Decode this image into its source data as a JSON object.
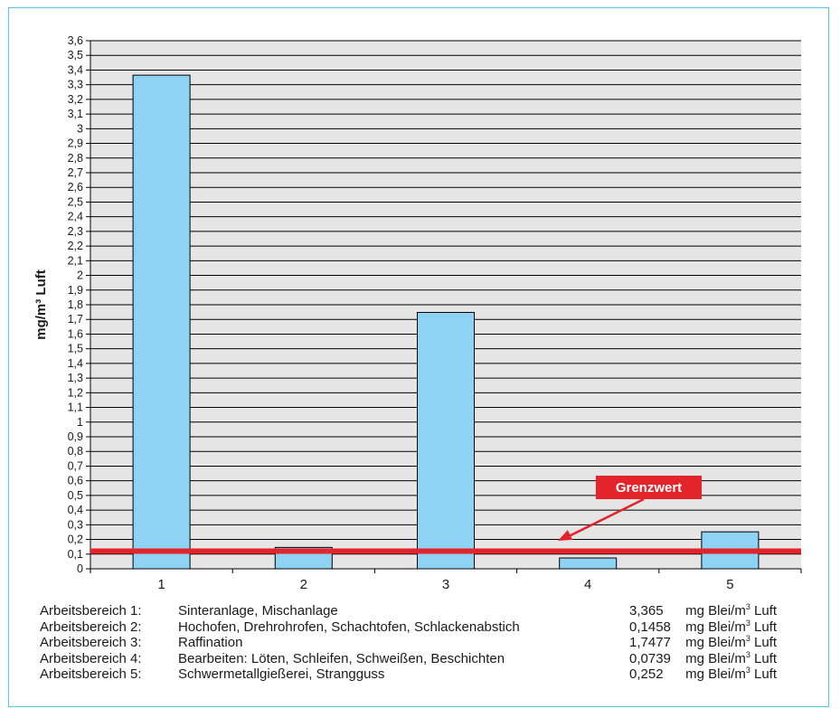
{
  "chart_data": {
    "type": "bar",
    "categories": [
      "1",
      "2",
      "3",
      "4",
      "5"
    ],
    "values": [
      3.365,
      0.1458,
      1.7477,
      0.0739,
      0.252
    ],
    "ylabel": "mg/m³ Luft",
    "ylim": [
      0,
      3.6
    ],
    "y_ticks": [
      "0",
      "0,1",
      "0,2",
      "0,3",
      "0,4",
      "0,5",
      "0,6",
      "0,7",
      "0,8",
      "0,9",
      "1",
      "1,1",
      "1,2",
      "1,3",
      "1,4",
      "1,5",
      "1,6",
      "1,7",
      "1,8",
      "1,9",
      "2",
      "2,1",
      "2,2",
      "2,3",
      "2,4",
      "2,5",
      "2,6",
      "2,7",
      "2,8",
      "2,9",
      "3",
      "3,1",
      "3,2",
      "3,3",
      "3,4",
      "3,5",
      "3,6"
    ],
    "grid": true,
    "limit_value": 0.12,
    "annotation": "Grenzwert",
    "colors": {
      "bar": "#8fd3f4",
      "limit": "#e3242b",
      "plot_bg": "#e5e5e5",
      "frame": "#5bc4e8"
    }
  },
  "legend": [
    {
      "label": "Arbeitsbereich 1:",
      "desc": "Sinteranlage, Mischanlage",
      "num": "3,365",
      "unit": "mg Blei/m",
      "sup": "3",
      "tail": " Luft"
    },
    {
      "label": "Arbeitsbereich 2:",
      "desc": "Hochofen, Drehrohrofen, Schachtofen, Schlackenabstich",
      "num": "0,1458",
      "unit": "mg Blei/m",
      "sup": "3",
      "tail": " Luft"
    },
    {
      "label": "Arbeitsbereich 3:",
      "desc": "Raffination",
      "num": "1,7477",
      "unit": "mg Blei/m",
      "sup": "3",
      "tail": " Luft"
    },
    {
      "label": "Arbeitsbereich 4:",
      "desc": "Bearbeiten: Löten, Schleifen, Schweißen, Beschichten",
      "num": "0,0739",
      "unit": "mg Blei/m",
      "sup": "3",
      "tail": " Luft"
    },
    {
      "label": "Arbeitsbereich 5:",
      "desc": "Schwermetallgießerei, Strangguss",
      "num": "0,252",
      "unit": "mg Blei/m",
      "sup": "3",
      "tail": " Luft"
    }
  ]
}
